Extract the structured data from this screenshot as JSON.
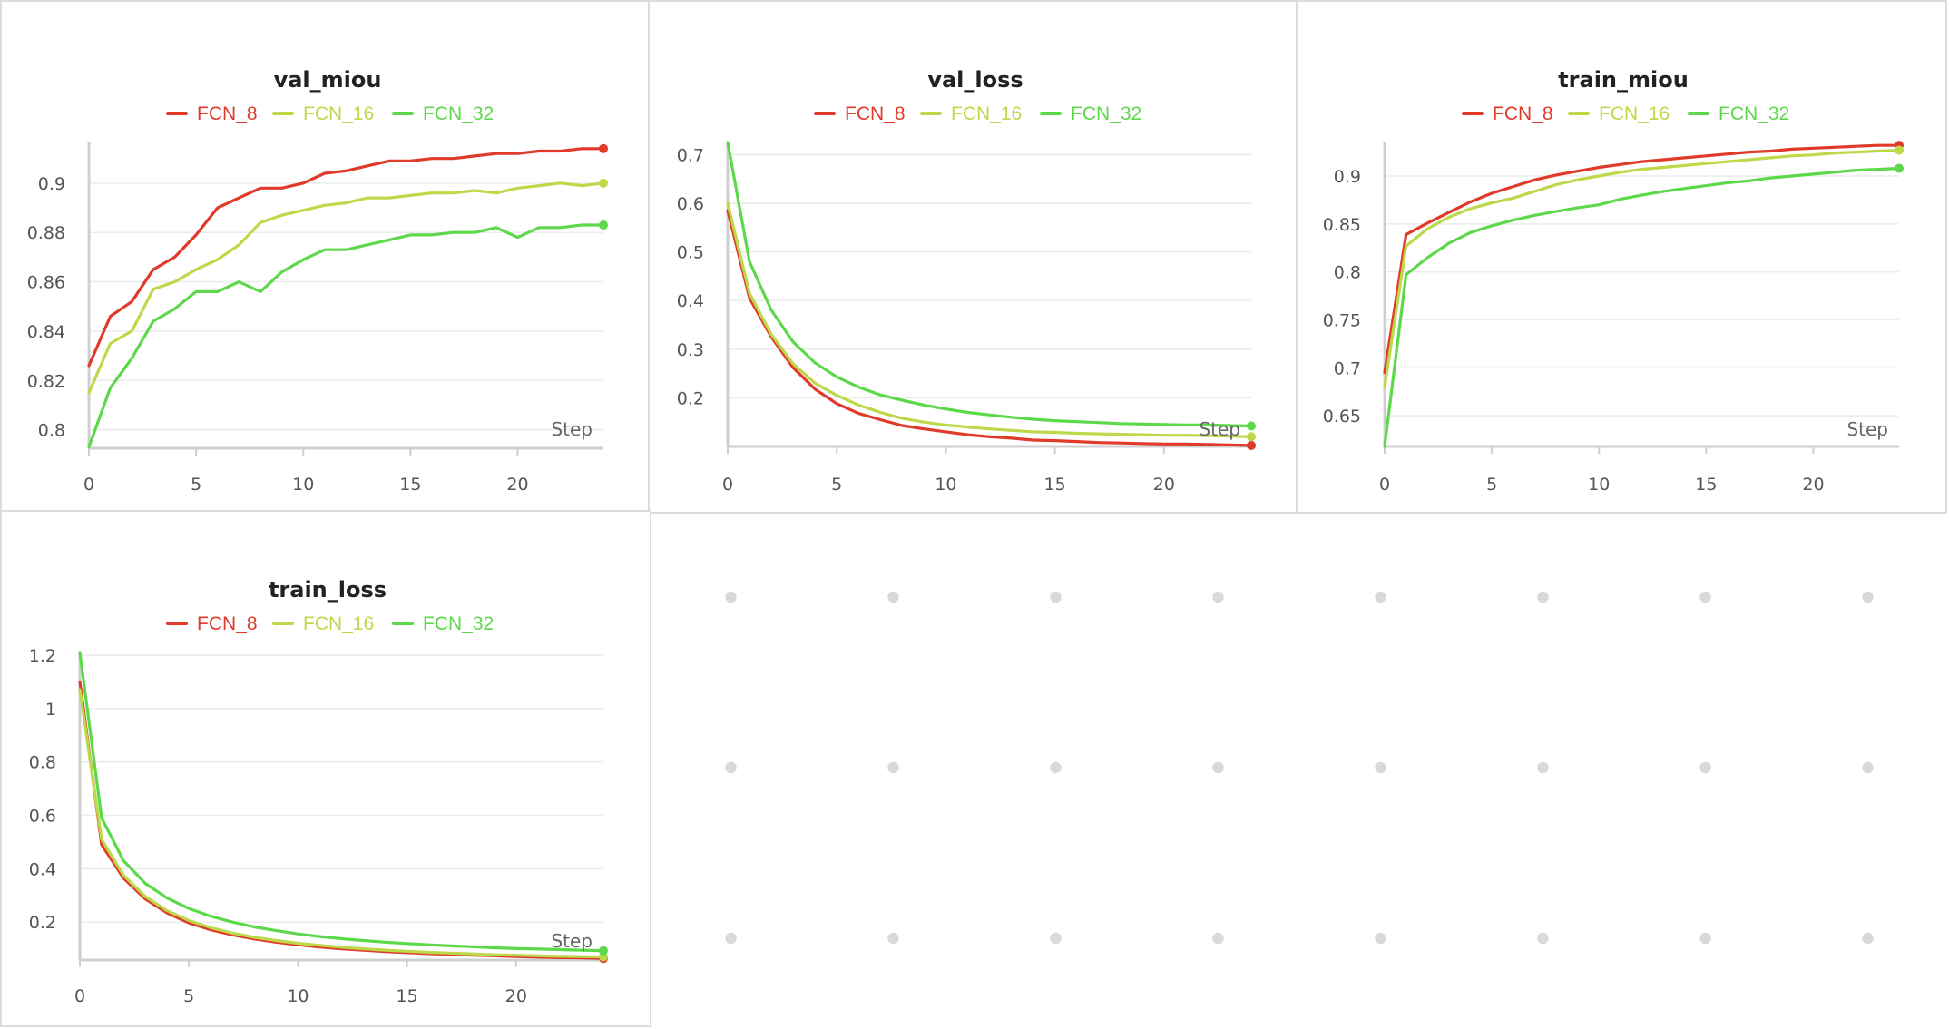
{
  "colors": {
    "FCN_8": "#e03a2a",
    "FCN_16": "#bcd94a",
    "FCN_32": "#5cd84a"
  },
  "x_axis_label": "Step",
  "chart_data": [
    {
      "id": "val_miou",
      "type": "line",
      "title": "val_miou",
      "xlabel": "Step",
      "legend_position": "top-center",
      "grid": true,
      "x": [
        0,
        1,
        2,
        3,
        4,
        5,
        6,
        7,
        8,
        9,
        10,
        11,
        12,
        13,
        14,
        15,
        16,
        17,
        18,
        19,
        20,
        21,
        22,
        23,
        24
      ],
      "xlim": [
        0,
        24
      ],
      "ylim": [
        0.7925,
        0.9165
      ],
      "xticks": [
        0,
        5,
        10,
        15,
        20
      ],
      "yticks": [
        0.8,
        0.82,
        0.84,
        0.86,
        0.88,
        0.9
      ],
      "ytick_labels": [
        "0.8",
        "0.82",
        "0.84",
        "0.86",
        "0.88",
        "0.9"
      ],
      "series": [
        {
          "name": "FCN_8",
          "color": "#e03a2a",
          "values": [
            0.826,
            0.846,
            0.852,
            0.865,
            0.87,
            0.879,
            0.89,
            0.894,
            0.898,
            0.898,
            0.9,
            0.904,
            0.905,
            0.907,
            0.909,
            0.909,
            0.91,
            0.91,
            0.911,
            0.912,
            0.912,
            0.913,
            0.913,
            0.914,
            0.914
          ]
        },
        {
          "name": "FCN_16",
          "color": "#bcd94a",
          "values": [
            0.815,
            0.835,
            0.84,
            0.857,
            0.86,
            0.865,
            0.869,
            0.875,
            0.884,
            0.887,
            0.889,
            0.891,
            0.892,
            0.894,
            0.894,
            0.895,
            0.896,
            0.896,
            0.897,
            0.896,
            0.898,
            0.899,
            0.9,
            0.899,
            0.9
          ]
        },
        {
          "name": "FCN_32",
          "color": "#5cd84a",
          "values": [
            0.793,
            0.817,
            0.829,
            0.844,
            0.849,
            0.856,
            0.856,
            0.86,
            0.856,
            0.864,
            0.869,
            0.873,
            0.873,
            0.875,
            0.877,
            0.879,
            0.879,
            0.88,
            0.88,
            0.882,
            0.878,
            0.882,
            0.882,
            0.883,
            0.883
          ]
        }
      ]
    },
    {
      "id": "val_loss",
      "type": "line",
      "title": "val_loss",
      "xlabel": "Step",
      "legend_position": "top-center",
      "grid": true,
      "x": [
        0,
        1,
        2,
        3,
        4,
        5,
        6,
        7,
        8,
        9,
        10,
        11,
        12,
        13,
        14,
        15,
        16,
        17,
        18,
        19,
        20,
        21,
        22,
        23,
        24
      ],
      "xlim": [
        0,
        24
      ],
      "ylim": [
        0.1,
        0.725
      ],
      "xticks": [
        0,
        5,
        10,
        15,
        20
      ],
      "yticks": [
        0.2,
        0.3,
        0.4,
        0.5,
        0.6,
        0.7
      ],
      "ytick_labels": [
        "0.2",
        "0.3",
        "0.4",
        "0.5",
        "0.6",
        "0.7"
      ],
      "series": [
        {
          "name": "FCN_8",
          "color": "#e03a2a",
          "values": [
            0.585,
            0.405,
            0.325,
            0.262,
            0.218,
            0.188,
            0.168,
            0.155,
            0.143,
            0.136,
            0.13,
            0.124,
            0.12,
            0.117,
            0.113,
            0.112,
            0.11,
            0.108,
            0.107,
            0.106,
            0.105,
            0.105,
            0.104,
            0.103,
            0.102
          ]
        },
        {
          "name": "FCN_16",
          "color": "#bcd94a",
          "values": [
            0.6,
            0.415,
            0.33,
            0.27,
            0.23,
            0.205,
            0.185,
            0.17,
            0.158,
            0.15,
            0.144,
            0.14,
            0.136,
            0.133,
            0.13,
            0.129,
            0.127,
            0.126,
            0.125,
            0.124,
            0.123,
            0.123,
            0.122,
            0.121,
            0.12
          ]
        },
        {
          "name": "FCN_32",
          "color": "#5cd84a",
          "values": [
            0.725,
            0.48,
            0.38,
            0.315,
            0.272,
            0.243,
            0.222,
            0.206,
            0.195,
            0.185,
            0.177,
            0.17,
            0.165,
            0.16,
            0.156,
            0.153,
            0.151,
            0.149,
            0.147,
            0.146,
            0.145,
            0.144,
            0.144,
            0.143,
            0.142
          ]
        }
      ]
    },
    {
      "id": "train_miou",
      "type": "line",
      "title": "train_miou",
      "xlabel": "Step",
      "legend_position": "top-center",
      "grid": true,
      "x": [
        0,
        1,
        2,
        3,
        4,
        5,
        6,
        7,
        8,
        9,
        10,
        11,
        12,
        13,
        14,
        15,
        16,
        17,
        18,
        19,
        20,
        21,
        22,
        23,
        24
      ],
      "xlim": [
        0,
        24
      ],
      "ylim": [
        0.618,
        0.935
      ],
      "xticks": [
        0,
        5,
        10,
        15,
        20
      ],
      "yticks": [
        0.65,
        0.7,
        0.75,
        0.8,
        0.85,
        0.9
      ],
      "ytick_labels": [
        "0.65",
        "0.7",
        "0.75",
        "0.8",
        "0.85",
        "0.9"
      ],
      "series": [
        {
          "name": "FCN_8",
          "color": "#e03a2a",
          "values": [
            0.695,
            0.839,
            0.851,
            0.862,
            0.873,
            0.882,
            0.889,
            0.896,
            0.901,
            0.905,
            0.909,
            0.912,
            0.915,
            0.917,
            0.919,
            0.921,
            0.923,
            0.925,
            0.926,
            0.928,
            0.929,
            0.93,
            0.931,
            0.932,
            0.932
          ]
        },
        {
          "name": "FCN_16",
          "color": "#bcd94a",
          "values": [
            0.68,
            0.827,
            0.845,
            0.857,
            0.866,
            0.872,
            0.877,
            0.884,
            0.891,
            0.896,
            0.9,
            0.904,
            0.907,
            0.909,
            0.911,
            0.913,
            0.915,
            0.917,
            0.919,
            0.921,
            0.922,
            0.924,
            0.925,
            0.926,
            0.927
          ]
        },
        {
          "name": "FCN_32",
          "color": "#5cd84a",
          "values": [
            0.618,
            0.797,
            0.815,
            0.83,
            0.841,
            0.848,
            0.854,
            0.859,
            0.863,
            0.867,
            0.87,
            0.876,
            0.88,
            0.884,
            0.887,
            0.89,
            0.893,
            0.895,
            0.898,
            0.9,
            0.902,
            0.904,
            0.906,
            0.907,
            0.908
          ]
        }
      ]
    },
    {
      "id": "train_loss",
      "type": "line",
      "title": "train_loss",
      "xlabel": "Step",
      "legend_position": "top-center",
      "grid": true,
      "x": [
        0,
        1,
        2,
        3,
        4,
        5,
        6,
        7,
        8,
        9,
        10,
        11,
        12,
        13,
        14,
        15,
        16,
        17,
        18,
        19,
        20,
        21,
        22,
        23,
        24
      ],
      "xlim": [
        0,
        24
      ],
      "ylim": [
        0.058,
        1.21
      ],
      "xticks": [
        0,
        5,
        10,
        15,
        20
      ],
      "yticks": [
        0.2,
        0.4,
        0.6,
        0.8,
        1,
        1.2
      ],
      "ytick_labels": [
        "0.2",
        "0.4",
        "0.6",
        "0.8",
        "1",
        "1.2"
      ],
      "series": [
        {
          "name": "FCN_8",
          "color": "#e03a2a",
          "values": [
            1.1,
            0.49,
            0.365,
            0.287,
            0.234,
            0.197,
            0.171,
            0.152,
            0.137,
            0.125,
            0.115,
            0.107,
            0.1,
            0.095,
            0.09,
            0.086,
            0.082,
            0.079,
            0.076,
            0.074,
            0.071,
            0.069,
            0.067,
            0.066,
            0.064
          ]
        },
        {
          "name": "FCN_16",
          "color": "#bcd94a",
          "values": [
            1.07,
            0.51,
            0.375,
            0.296,
            0.243,
            0.206,
            0.179,
            0.159,
            0.143,
            0.131,
            0.121,
            0.113,
            0.106,
            0.1,
            0.095,
            0.091,
            0.087,
            0.084,
            0.081,
            0.078,
            0.076,
            0.074,
            0.072,
            0.071,
            0.07
          ]
        },
        {
          "name": "FCN_32",
          "color": "#5cd84a",
          "values": [
            1.21,
            0.59,
            0.43,
            0.345,
            0.29,
            0.251,
            0.222,
            0.2,
            0.182,
            0.168,
            0.156,
            0.146,
            0.138,
            0.131,
            0.125,
            0.12,
            0.115,
            0.111,
            0.108,
            0.104,
            0.101,
            0.099,
            0.097,
            0.095,
            0.093
          ]
        }
      ]
    }
  ]
}
